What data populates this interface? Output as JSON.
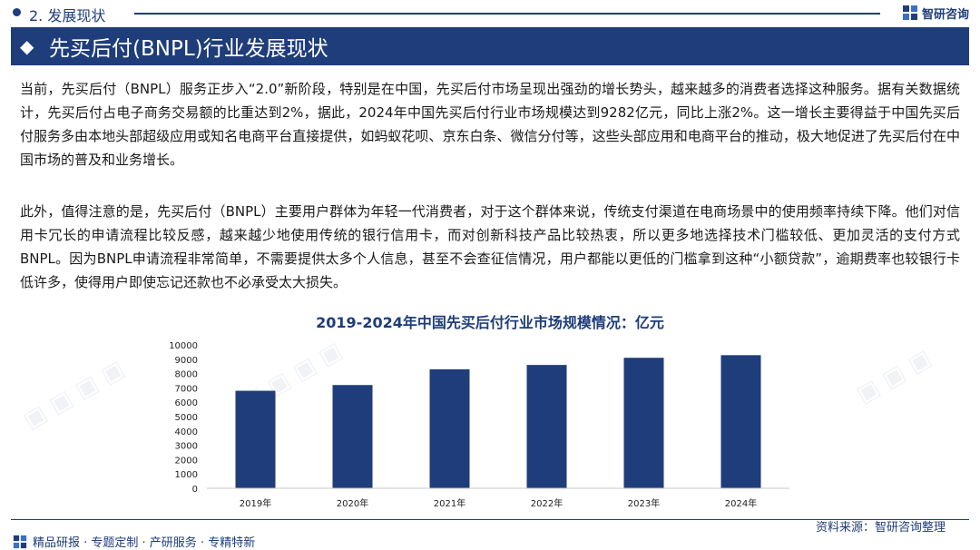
{
  "header": {
    "section": "2. 发展现状",
    "logo_name": "智研咨询",
    "title": "先买后付(BNPL)行业发展现状"
  },
  "paragraphs": [
    "当前，先买后付（BNPL）服务正步入“2.0”新阶段，特别是在中国，先买后付市场呈现出强劲的增长势头，越来越多的消费者选择这种服务。据有关数据统计，先买后付占电子商务交易额的比重达到2%，据此，2024年中国先买后付行业市场规模达到9282亿元，同比上涨2%。这一增长主要得益于中国先买后付服务多由本地头部超级应用或知名电商平台直接提供，如蚂蚁花呗、京东白条、微信分付等，这些头部应用和电商平台的推动，极大地促进了先买后付在中国市场的普及和业务增长。",
    "此外，值得注意的是，先买后付（BNPL）主要用户群体为年轻一代消费者，对于这个群体来说，传统支付渠道在电商场景中的使用频率持续下降。他们对信用卡冗长的申请流程比较反感，越来越少地使用传统的银行信用卡，而对创新科技产品比较热衷，所以更多地选择技术门槛较低、更加灵活的支付方式BNPL。因为BNPL申请流程非常简单，不需要提供太多个人信息，甚至不会查征信情况，用户都能以更低的门槛拿到这种“小额贷款”，逾期费率也较银行卡低许多，使得用户即使忘记还款也不必承受太大损失。"
  ],
  "chart_data": {
    "type": "bar",
    "title": "2019-2024年中国先买后付行业市场规模情况：亿元",
    "categories": [
      "2019年",
      "2020年",
      "2021年",
      "2022年",
      "2023年",
      "2024年"
    ],
    "values": [
      6800,
      7200,
      8300,
      8600,
      9100,
      9282
    ],
    "yticks": [
      0,
      1000,
      2000,
      3000,
      4000,
      5000,
      6000,
      7000,
      8000,
      9000,
      10000
    ],
    "ylim": [
      0,
      10000
    ],
    "xlabel": "",
    "ylabel": "",
    "bar_color": "#1f3d7a"
  },
  "source": "资料来源：智研咨询整理",
  "footer": "精品研报 · 专题定制 · 产研服务 · 专精特新",
  "colors": {
    "brand": "#1f3d7a"
  }
}
